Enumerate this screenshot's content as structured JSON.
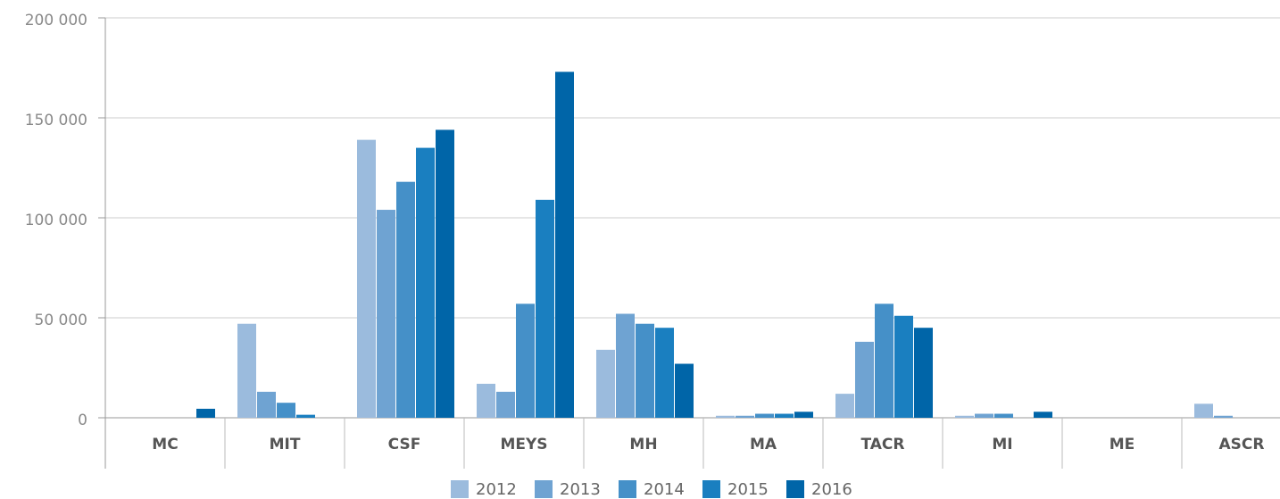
{
  "chart_data": {
    "type": "bar",
    "categories": [
      "MC",
      "MIT",
      "CSF",
      "MEYS",
      "MH",
      "MA",
      "TACR",
      "MI",
      "ME",
      "ASCR"
    ],
    "series": [
      {
        "name": "2012",
        "color": "#9bbbdd",
        "values": [
          0,
          47000,
          139000,
          17000,
          34000,
          1000,
          12000,
          1000,
          0,
          7000
        ]
      },
      {
        "name": "2013",
        "color": "#6fa3d2",
        "values": [
          0,
          13000,
          104000,
          13000,
          52000,
          1000,
          38000,
          2000,
          0,
          1000
        ]
      },
      {
        "name": "2014",
        "color": "#4590c8",
        "values": [
          0,
          7500,
          118000,
          57000,
          47000,
          2000,
          57000,
          2000,
          0,
          0
        ]
      },
      {
        "name": "2015",
        "color": "#1a7fc0",
        "values": [
          0,
          1500,
          135000,
          109000,
          45000,
          2000,
          51000,
          0,
          0,
          0
        ]
      },
      {
        "name": "2016",
        "color": "#0065a8",
        "values": [
          4500,
          0,
          144000,
          173000,
          27000,
          3000,
          45000,
          3000,
          0,
          0
        ]
      }
    ],
    "ylim": [
      0,
      200000
    ],
    "yticks": [
      0,
      {
        "value": 50000,
        "label": "50 000"
      },
      {
        "value": 100000,
        "label": "100 000"
      },
      {
        "value": 150000,
        "label": "150 000"
      },
      {
        "value": 200000,
        "label": "200 000"
      }
    ],
    "grid": true,
    "legend": "bottom"
  }
}
